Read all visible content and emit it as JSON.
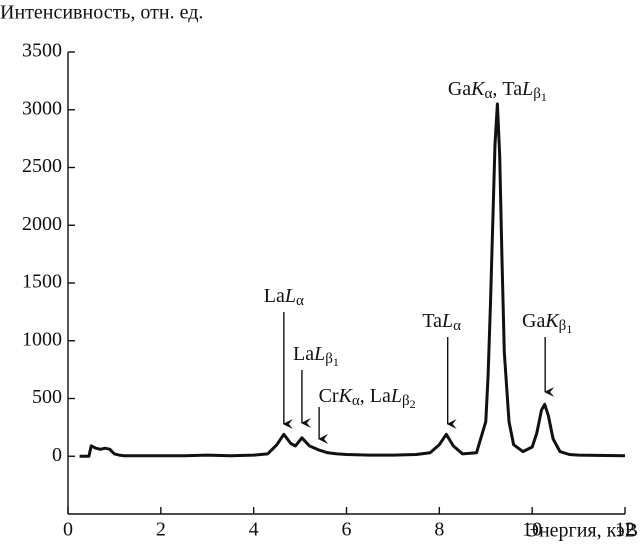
{
  "chart_data": {
    "type": "line",
    "ylabel": "Интенсивность, отн. ед.",
    "xlabel": "Энергия, кэВ",
    "xlim": [
      0,
      12
    ],
    "ylim": [
      -500,
      3500
    ],
    "xticks": [
      0,
      2,
      4,
      6,
      8,
      10,
      12
    ],
    "yticks": [
      0,
      500,
      1000,
      1500,
      2000,
      2500,
      3000,
      3500
    ],
    "series": [
      {
        "color": "#111111",
        "x": [
          0.25,
          0.45,
          0.5,
          0.6,
          0.7,
          0.8,
          0.9,
          1.0,
          1.1,
          1.2,
          1.5,
          2.0,
          2.5,
          3.0,
          3.5,
          4.0,
          4.3,
          4.5,
          4.65,
          4.8,
          4.9,
          5.04,
          5.2,
          5.4,
          5.6,
          5.8,
          6.0,
          6.5,
          7.0,
          7.5,
          7.8,
          8.0,
          8.15,
          8.3,
          8.5,
          8.8,
          9.0,
          9.05,
          9.1,
          9.15,
          9.2,
          9.25,
          9.3,
          9.35,
          9.4,
          9.5,
          9.6,
          9.8,
          10.0,
          10.1,
          10.2,
          10.27,
          10.35,
          10.45,
          10.6,
          10.8,
          11.0,
          12.0
        ],
        "values": [
          0,
          0,
          90,
          70,
          60,
          70,
          60,
          20,
          10,
          5,
          5,
          5,
          5,
          10,
          5,
          10,
          20,
          100,
          190,
          110,
          90,
          160,
          90,
          55,
          30,
          20,
          15,
          10,
          10,
          15,
          30,
          100,
          190,
          90,
          20,
          30,
          300,
          700,
          1300,
          2000,
          2700,
          3050,
          2600,
          1700,
          900,
          300,
          100,
          40,
          80,
          200,
          400,
          450,
          350,
          150,
          40,
          15,
          10,
          5
        ]
      }
    ],
    "annotations": [
      {
        "label": [
          {
            "text": "La"
          },
          {
            "text": "L",
            "style": "italic"
          },
          {
            "text": "α",
            "style": "sub"
          }
        ],
        "x": 4.65,
        "arrow": true
      },
      {
        "label": [
          {
            "text": "La"
          },
          {
            "text": "L",
            "style": "italic"
          },
          {
            "text": "β",
            "style": "sub"
          },
          {
            "text": "1",
            "style": "sub2"
          }
        ],
        "x": 5.04,
        "arrow": true
      },
      {
        "label": [
          {
            "text": "Cr"
          },
          {
            "text": "K",
            "style": "italic"
          },
          {
            "text": "α",
            "style": "sub"
          },
          {
            "text": ", La"
          },
          {
            "text": "L",
            "style": "italic"
          },
          {
            "text": "β",
            "style": "sub"
          },
          {
            "text": "2",
            "style": "sub2"
          }
        ],
        "x": 5.41,
        "arrow": true
      },
      {
        "label": [
          {
            "text": "Ta"
          },
          {
            "text": "L",
            "style": "italic"
          },
          {
            "text": "α",
            "style": "sub"
          }
        ],
        "x": 8.18,
        "arrow": true
      },
      {
        "label": [
          {
            "text": "Ga"
          },
          {
            "text": "K",
            "style": "italic"
          },
          {
            "text": "α",
            "style": "sub"
          },
          {
            "text": ", Ta"
          },
          {
            "text": "L",
            "style": "italic"
          },
          {
            "text": "β",
            "style": "sub"
          },
          {
            "text": "1",
            "style": "sub2"
          }
        ],
        "x": 9.25,
        "arrow": false
      },
      {
        "label": [
          {
            "text": "Ga"
          },
          {
            "text": "K",
            "style": "italic"
          },
          {
            "text": "β",
            "style": "sub"
          },
          {
            "text": "1",
            "style": "sub2"
          }
        ],
        "x": 10.28,
        "arrow": true
      }
    ]
  }
}
